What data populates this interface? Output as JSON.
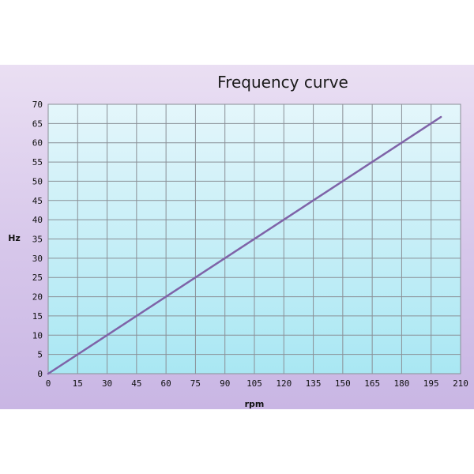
{
  "chart_data": {
    "type": "line",
    "title": "Frequency curve",
    "xlabel": "rpm",
    "ylabel": "Hz",
    "xlim": [
      0,
      210
    ],
    "ylim": [
      0,
      70
    ],
    "x_ticks": [
      "0",
      "15",
      "30",
      "45",
      "60",
      "75",
      "90",
      "105",
      "120",
      "135",
      "150",
      "165",
      "180",
      "195",
      "210"
    ],
    "y_ticks": [
      "0",
      "5",
      "10",
      "15",
      "20",
      "25",
      "30",
      "35",
      "40",
      "45",
      "50",
      "55",
      "60",
      "65",
      "70"
    ],
    "grid": true,
    "legend": "none",
    "series": [
      {
        "x": [
          0,
          200
        ],
        "y": [
          0,
          66.7
        ],
        "color": "#7f63a8"
      }
    ],
    "colors": {
      "plot_top": "#e4f6fb",
      "plot_bottom": "#a9e7f3",
      "grid": "#8a8f96",
      "line": "#7f63a8",
      "panel_top": "#eadff3",
      "panel_bottom": "#c9b6e4"
    }
  }
}
